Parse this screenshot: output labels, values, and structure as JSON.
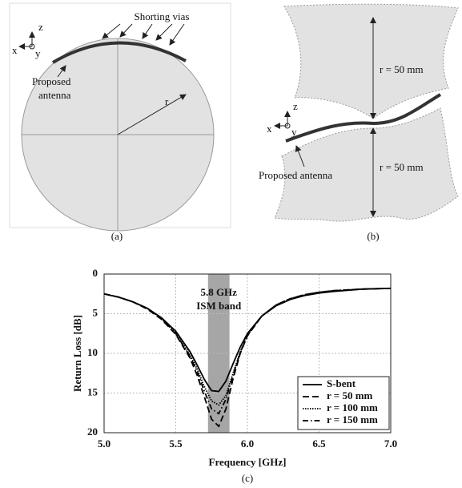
{
  "figure_a": {
    "shorting_label": "Shorting vias",
    "antenna_label": [
      "Proposed",
      "antenna"
    ],
    "radius_label": "r",
    "axis_z": "z",
    "axis_x": "x",
    "axis_y": "y",
    "caption": "(a)"
  },
  "figure_b": {
    "radius_top": "r = 50 mm",
    "radius_bottom": "r = 50 mm",
    "antenna_label": "Proposed antenna",
    "axis_z": "z",
    "axis_x": "x",
    "axis_y": "y",
    "caption": "(b)"
  },
  "chart_data": {
    "type": "line",
    "xlabel": "Frequency [GHz]",
    "ylabel": "Return Loss [dB]",
    "caption": "(c)",
    "annotation": [
      "5.8 GHz",
      "ISM band"
    ],
    "band": [
      5.725,
      5.875
    ],
    "band_color": "#a6a6a6",
    "x": [
      5.0,
      5.1,
      5.2,
      5.3,
      5.4,
      5.5,
      5.6,
      5.65,
      5.7,
      5.75,
      5.8,
      5.85,
      5.9,
      5.95,
      6.0,
      6.1,
      6.2,
      6.3,
      6.4,
      6.5,
      6.6,
      6.8,
      7.0
    ],
    "series": [
      {
        "name": "S-bent",
        "color": "#000000",
        "dash": "solid",
        "values": [
          2.5,
          2.9,
          3.5,
          4.3,
          5.5,
          7.2,
          9.8,
          11.5,
          13.3,
          14.7,
          14.8,
          13.5,
          11.3,
          9.2,
          7.5,
          5.3,
          4.0,
          3.2,
          2.7,
          2.4,
          2.2,
          1.9,
          1.8
        ]
      },
      {
        "name": "r = 50 mm",
        "color": "#000000",
        "dash": "dashed",
        "values": [
          2.5,
          2.9,
          3.5,
          4.4,
          5.7,
          7.6,
          10.6,
          12.8,
          15.5,
          18.3,
          19.2,
          17.0,
          13.2,
          10.0,
          7.8,
          5.3,
          3.9,
          3.1,
          2.6,
          2.3,
          2.1,
          1.9,
          1.8
        ]
      },
      {
        "name": "r = 100 mm",
        "color": "#000000",
        "dash": "dotted",
        "values": [
          2.5,
          2.9,
          3.5,
          4.3,
          5.6,
          7.4,
          10.2,
          12.0,
          14.2,
          16.0,
          16.5,
          15.3,
          12.5,
          9.8,
          7.7,
          5.3,
          3.9,
          3.1,
          2.6,
          2.3,
          2.1,
          1.9,
          1.8
        ]
      },
      {
        "name": "r = 150 mm",
        "color": "#000000",
        "dash": "dashdot",
        "values": [
          2.5,
          2.9,
          3.5,
          4.3,
          5.6,
          7.5,
          10.4,
          12.3,
          14.8,
          17.0,
          17.6,
          15.8,
          12.7,
          9.9,
          7.7,
          5.3,
          3.9,
          3.1,
          2.6,
          2.3,
          2.1,
          1.9,
          1.8
        ]
      }
    ],
    "xlim": [
      5.0,
      7.0
    ],
    "xticks": [
      {
        "value": 5.0,
        "label": "5.0"
      },
      5.5,
      {
        "value": 6.0,
        "label": "6.0"
      },
      6.5,
      {
        "value": 7.0,
        "label": "7.0"
      }
    ],
    "ylim": [
      0,
      20
    ],
    "yticks": [
      0,
      5,
      10,
      15,
      20
    ],
    "invert_y": true,
    "grid": true,
    "legend": "lower right"
  }
}
